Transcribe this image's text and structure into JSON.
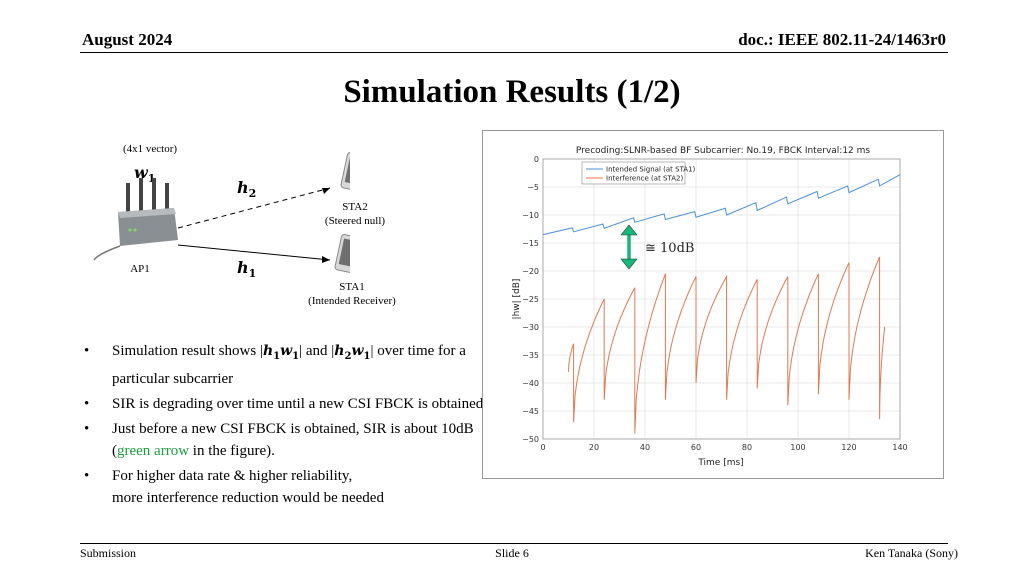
{
  "header": {
    "date": "August 2024",
    "doc": "doc.: IEEE 802.11-24/1463r0"
  },
  "title": "Simulation Results (1/2)",
  "diagram": {
    "vector_note": "(4x1 vector)",
    "w1": {
      "base": "w",
      "sub": "1"
    },
    "h2": {
      "base": "h",
      "sub": "2"
    },
    "h1": {
      "base": "h",
      "sub": "1"
    },
    "ap_label": "AP1",
    "sta2": {
      "name": "STA2",
      "role": "(Steered null)"
    },
    "sta1": {
      "name": "STA1",
      "role": "(Intended Receiver)"
    },
    "arrow_label": "≅ 10dB",
    "arrow_color": "#14b87a"
  },
  "bullets": {
    "b1": {
      "p1": "Simulation result shows |",
      "h1": "h",
      "h1s": "1",
      "w1": "w",
      "w1s": "1",
      "p2": "| and |",
      "h2": "h",
      "h2s": "2",
      "w2": "w",
      "w2s": "1",
      "p3": "| over time for a particular subcarrier"
    },
    "b2": "SIR is degrading over time until a new CSI FBCK is obtained",
    "b3": {
      "p1": "Just before a new CSI FBCK is obtained, SIR is about 10dB (",
      "green": "green arrow",
      "p2": " in the figure)."
    },
    "b4": {
      "line1": "For higher data rate & higher reliability,",
      "line2": "more interference reduction would be needed"
    }
  },
  "footer": {
    "left": "Submission",
    "center": "Slide 6",
    "right": "Ken Tanaka (Sony)"
  },
  "chart_data": {
    "type": "line",
    "title": "Precoding:SLNR-based BF Subcarrier: No.19,  FBCK Interval:12 ms",
    "xlabel": "Time [ms]",
    "ylabel": "|hw| [dB]",
    "xlim": [
      0,
      140
    ],
    "ylim": [
      -50,
      0
    ],
    "xticks": [
      0,
      20,
      40,
      60,
      80,
      100,
      120,
      140
    ],
    "yticks": [
      0,
      -5,
      -10,
      -15,
      -20,
      -25,
      -30,
      -35,
      -40,
      -45,
      -50
    ],
    "legend_position": "top-left",
    "series": [
      {
        "name": "Intended Signal (at STA1)",
        "color": "#4a90d9",
        "x": [
          0,
          11.5,
          12,
          23.5,
          24,
          35.5,
          36,
          47.5,
          48,
          59.5,
          60,
          71.5,
          72,
          83.5,
          84,
          95.5,
          96,
          107.5,
          108,
          119.5,
          120,
          131.5,
          132,
          140
        ],
        "y": [
          -13.5,
          -12.3,
          -13.0,
          -11.6,
          -12.4,
          -10.5,
          -11.3,
          -9.8,
          -10.8,
          -9.4,
          -10.4,
          -8.8,
          -10.0,
          -7.8,
          -9.2,
          -6.8,
          -8.0,
          -5.8,
          -7.0,
          -4.8,
          -6.0,
          -3.6,
          -4.8,
          -2.8
        ]
      },
      {
        "name": "Interference (at STA2)",
        "color": "#e07a52",
        "cycles": [
          {
            "start": 10,
            "end": 12,
            "startY": -38,
            "endY": -33
          },
          {
            "start": 12,
            "end": 24,
            "startY": -47,
            "endY": -25
          },
          {
            "start": 24,
            "end": 36,
            "startY": -43,
            "endY": -23
          },
          {
            "start": 36,
            "end": 48,
            "startY": -49,
            "endY": -20.5
          },
          {
            "start": 48,
            "end": 60,
            "startY": -43,
            "endY": -21
          },
          {
            "start": 60,
            "end": 72,
            "startY": -40,
            "endY": -21
          },
          {
            "start": 72,
            "end": 84,
            "startY": -43,
            "endY": -21.5
          },
          {
            "start": 84,
            "end": 96,
            "startY": -41,
            "endY": -21
          },
          {
            "start": 96,
            "end": 108,
            "startY": -44,
            "endY": -20.5
          },
          {
            "start": 108,
            "end": 120,
            "startY": -42,
            "endY": -18.5
          },
          {
            "start": 120,
            "end": 132,
            "startY": -43,
            "endY": -17.5
          },
          {
            "start": 132,
            "end": 134,
            "startY": -46.5,
            "endY": -30
          }
        ]
      }
    ]
  }
}
